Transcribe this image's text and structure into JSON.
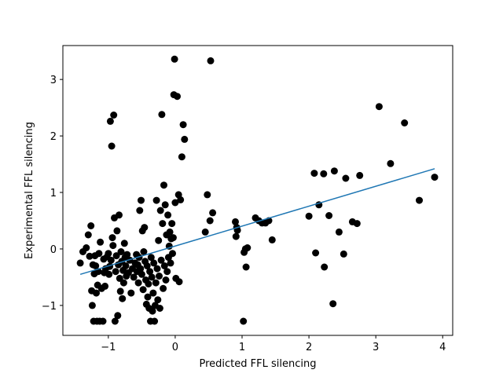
{
  "chart_data": {
    "type": "scatter",
    "title": "",
    "xlabel": "Predicted FFL silencing",
    "ylabel": "Experimental FFL silencing",
    "xlim": [
      -1.68,
      4.15
    ],
    "ylim": [
      -1.53,
      3.6
    ],
    "xticks": [
      -1,
      0,
      1,
      2,
      3,
      4
    ],
    "yticks": [
      -1,
      0,
      1,
      2,
      3
    ],
    "grid": false,
    "legend": "none",
    "marker_color": "#000000",
    "fit_line_color": "#1f77b4",
    "fit_line": {
      "x": [
        -1.42,
        3.88
      ],
      "y": [
        -0.45,
        1.42
      ]
    },
    "series": [
      {
        "points": [
          [
            -1.42,
            -0.25
          ],
          [
            -1.38,
            -0.05
          ],
          [
            -1.33,
            0.02
          ],
          [
            -1.3,
            0.25
          ],
          [
            -1.28,
            -0.13
          ],
          [
            -1.26,
            0.41
          ],
          [
            -1.25,
            -0.74
          ],
          [
            -1.24,
            -1.0
          ],
          [
            -1.23,
            -0.28
          ],
          [
            -1.22,
            -1.28
          ],
          [
            -1.21,
            -0.44
          ],
          [
            -1.2,
            -0.12
          ],
          [
            -1.19,
            -0.3
          ],
          [
            -1.18,
            -0.78
          ],
          [
            -1.17,
            -1.28
          ],
          [
            -1.16,
            -0.64
          ],
          [
            -1.15,
            -0.4
          ],
          [
            -1.14,
            -0.08
          ],
          [
            -1.13,
            -1.28
          ],
          [
            -1.12,
            0.12
          ],
          [
            -1.1,
            -0.7
          ],
          [
            -1.08,
            -1.28
          ],
          [
            -1.07,
            -0.18
          ],
          [
            -1.06,
            -0.42
          ],
          [
            -1.05,
            -0.66
          ],
          [
            -1.04,
            -0.35
          ],
          [
            -1.02,
            -0.14
          ],
          [
            -1.0,
            -0.08
          ],
          [
            -0.99,
            -0.45
          ],
          [
            -0.98,
            -0.31
          ],
          [
            -0.97,
            2.26
          ],
          [
            -0.96,
            -0.2
          ],
          [
            -0.95,
            1.82
          ],
          [
            -0.94,
            0.2
          ],
          [
            -0.93,
            0.06
          ],
          [
            -0.92,
            2.37
          ],
          [
            -0.91,
            0.55
          ],
          [
            -0.9,
            -1.28
          ],
          [
            -0.89,
            -0.4
          ],
          [
            -0.88,
            -0.12
          ],
          [
            -0.87,
            0.32
          ],
          [
            -0.86,
            -1.18
          ],
          [
            -0.85,
            -0.28
          ],
          [
            -0.84,
            0.6
          ],
          [
            -0.83,
            -0.52
          ],
          [
            -0.82,
            -0.75
          ],
          [
            -0.81,
            -0.05
          ],
          [
            -0.8,
            -0.22
          ],
          [
            -0.79,
            -0.88
          ],
          [
            -0.78,
            -0.38
          ],
          [
            -0.77,
            -0.6
          ],
          [
            -0.76,
            0.1
          ],
          [
            -0.75,
            -0.15
          ],
          [
            -0.74,
            -0.3
          ],
          [
            -0.73,
            -0.48
          ],
          [
            -0.72,
            -0.1
          ],
          [
            -0.7,
            -0.42
          ],
          [
            -0.68,
            -0.2
          ],
          [
            -0.66,
            -0.78
          ],
          [
            -0.64,
            -0.35
          ],
          [
            -0.62,
            -0.5
          ],
          [
            -0.6,
            -0.25
          ],
          [
            -0.58,
            -0.1
          ],
          [
            -0.57,
            -0.4
          ],
          [
            -0.56,
            -0.28
          ],
          [
            -0.55,
            -0.6
          ],
          [
            -0.54,
            -0.15
          ],
          [
            -0.53,
            0.68
          ],
          [
            -0.52,
            -0.35
          ],
          [
            -0.51,
            0.86
          ],
          [
            -0.5,
            -0.45
          ],
          [
            -0.49,
            0.32
          ],
          [
            -0.48,
            -0.72
          ],
          [
            -0.47,
            -0.05
          ],
          [
            -0.46,
            0.38
          ],
          [
            -0.45,
            -0.22
          ],
          [
            -0.44,
            -0.55
          ],
          [
            -0.43,
            -0.98
          ],
          [
            -0.42,
            -0.3
          ],
          [
            -0.41,
            -0.85
          ],
          [
            -0.4,
            -0.62
          ],
          [
            -0.39,
            -1.05
          ],
          [
            -0.38,
            -0.4
          ],
          [
            -0.37,
            -1.28
          ],
          [
            -0.36,
            -0.15
          ],
          [
            -0.35,
            -0.5
          ],
          [
            -0.34,
            -1.1
          ],
          [
            -0.33,
            -0.78
          ],
          [
            -0.32,
            -0.25
          ],
          [
            -0.31,
            -1.28
          ],
          [
            -0.3,
            -1.0
          ],
          [
            -0.29,
            -0.6
          ],
          [
            -0.28,
            0.86
          ],
          [
            -0.27,
            -0.35
          ],
          [
            -0.26,
            -0.9
          ],
          [
            -0.25,
            0.15
          ],
          [
            -0.24,
            -0.48
          ],
          [
            -0.23,
            -1.05
          ],
          [
            -0.22,
            0.68
          ],
          [
            -0.21,
            -0.2
          ],
          [
            -0.2,
            2.38
          ],
          [
            -0.19,
            0.45
          ],
          [
            -0.18,
            -0.7
          ],
          [
            -0.17,
            1.13
          ],
          [
            -0.16,
            -0.3
          ],
          [
            -0.15,
            0.78
          ],
          [
            -0.14,
            -0.55
          ],
          [
            -0.13,
            0.25
          ],
          [
            -0.12,
            -0.4
          ],
          [
            -0.11,
            0.6
          ],
          [
            -0.1,
            -0.15
          ],
          [
            -0.09,
            0.05
          ],
          [
            -0.08,
            0.3
          ],
          [
            -0.07,
            -0.25
          ],
          [
            -0.06,
            0.18
          ],
          [
            -0.05,
            0.45
          ],
          [
            -0.04,
            -0.08
          ],
          [
            -0.03,
            0.2
          ],
          [
            -0.02,
            2.73
          ],
          [
            -0.01,
            3.36
          ],
          [
            0.0,
            0.82
          ],
          [
            0.01,
            -0.52
          ],
          [
            0.03,
            2.7
          ],
          [
            0.05,
            0.96
          ],
          [
            0.06,
            -0.58
          ],
          [
            0.08,
            0.87
          ],
          [
            0.1,
            1.63
          ],
          [
            0.12,
            2.2
          ],
          [
            0.14,
            1.94
          ],
          [
            0.45,
            0.3
          ],
          [
            0.48,
            0.96
          ],
          [
            0.52,
            0.5
          ],
          [
            0.53,
            3.33
          ],
          [
            0.56,
            0.64
          ],
          [
            0.9,
            0.48
          ],
          [
            0.91,
            0.22
          ],
          [
            0.92,
            0.38
          ],
          [
            0.93,
            0.33
          ],
          [
            1.02,
            -1.28
          ],
          [
            1.03,
            -0.06
          ],
          [
            1.05,
            0.0
          ],
          [
            1.06,
            -0.32
          ],
          [
            1.08,
            0.02
          ],
          [
            1.2,
            0.55
          ],
          [
            1.25,
            0.5
          ],
          [
            1.3,
            0.46
          ],
          [
            1.35,
            0.46
          ],
          [
            1.4,
            0.5
          ],
          [
            1.45,
            0.16
          ],
          [
            2.0,
            0.58
          ],
          [
            2.08,
            1.34
          ],
          [
            2.1,
            -0.07
          ],
          [
            2.15,
            0.78
          ],
          [
            2.22,
            1.33
          ],
          [
            2.23,
            -0.32
          ],
          [
            2.3,
            0.59
          ],
          [
            2.36,
            -0.97
          ],
          [
            2.38,
            1.38
          ],
          [
            2.45,
            0.3
          ],
          [
            2.52,
            -0.09
          ],
          [
            2.55,
            1.25
          ],
          [
            2.65,
            0.48
          ],
          [
            2.72,
            0.45
          ],
          [
            2.76,
            1.3
          ],
          [
            3.05,
            2.52
          ],
          [
            3.22,
            1.51
          ],
          [
            3.43,
            2.23
          ],
          [
            3.65,
            0.86
          ],
          [
            3.88,
            1.27
          ]
        ]
      }
    ]
  }
}
